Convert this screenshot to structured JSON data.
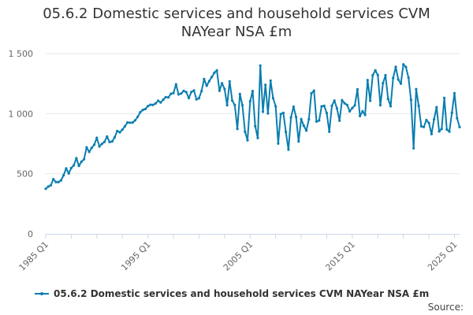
{
  "colors": {
    "series": "#0a7eb0",
    "grid": "#e6e6e6",
    "axis": "#ccd6eb",
    "text": "#666666"
  },
  "chart_data": {
    "type": "line",
    "title_lines": [
      "05.6.2 Domestic services and household services CVM",
      "NAYear NSA £m"
    ],
    "xlabel": "",
    "ylabel": "",
    "ylim": [
      0,
      1500
    ],
    "yticks": [
      0,
      500,
      1000,
      1500
    ],
    "ytick_labels": [
      "0",
      "500",
      "1 000",
      "1 500"
    ],
    "xtick_labels": [
      "1985 Q1",
      "1995 Q1",
      "2005 Q1",
      "2015 Q1",
      "2025 Q1"
    ],
    "legend": "top-left below axis",
    "source_label": "Source:",
    "series": [
      {
        "name": "05.6.2 Domestic services and household services CVM NAYear NSA £m",
        "start": "1985 Q1",
        "frequency": "quarterly",
        "values": [
          375,
          393,
          404,
          455,
          431,
          431,
          445,
          488,
          544,
          503,
          548,
          570,
          630,
          565,
          601,
          620,
          720,
          682,
          716,
          742,
          799,
          727,
          749,
          765,
          810,
          764,
          769,
          803,
          856,
          845,
          867,
          895,
          927,
          925,
          926,
          944,
          974,
          1012,
          1031,
          1038,
          1063,
          1074,
          1073,
          1085,
          1107,
          1093,
          1117,
          1138,
          1135,
          1165,
          1171,
          1244,
          1160,
          1167,
          1189,
          1180,
          1130,
          1180,
          1193,
          1119,
          1128,
          1188,
          1288,
          1232,
          1271,
          1305,
          1340,
          1360,
          1190,
          1253,
          1205,
          1070,
          1269,
          1108,
          1073,
          873,
          1163,
          1070,
          850,
          779,
          1103,
          1188,
          896,
          797,
          1400,
          1016,
          1240,
          1002,
          1275,
          1129,
          1061,
          751,
          997,
          1007,
          848,
          701,
          969,
          1058,
          972,
          769,
          955,
          900,
          859,
          953,
          1169,
          1191,
          934,
          943,
          1061,
          1065,
          1005,
          850,
          1066,
          1109,
          1044,
          941,
          1112,
          1086,
          1072,
          1019,
          1047,
          1069,
          1202,
          980,
          1020,
          990,
          1279,
          1107,
          1319,
          1360,
          1321,
          1070,
          1253,
          1320,
          1123,
          1062,
          1296,
          1389,
          1284,
          1249,
          1410,
          1388,
          1299,
          1114,
          712,
          1204,
          1065,
          895,
          889,
          947,
          922,
          830,
          953,
          1054,
          852,
          874,
          1131,
          868,
          851,
          1009,
          1170,
          962,
          888
        ]
      }
    ]
  }
}
